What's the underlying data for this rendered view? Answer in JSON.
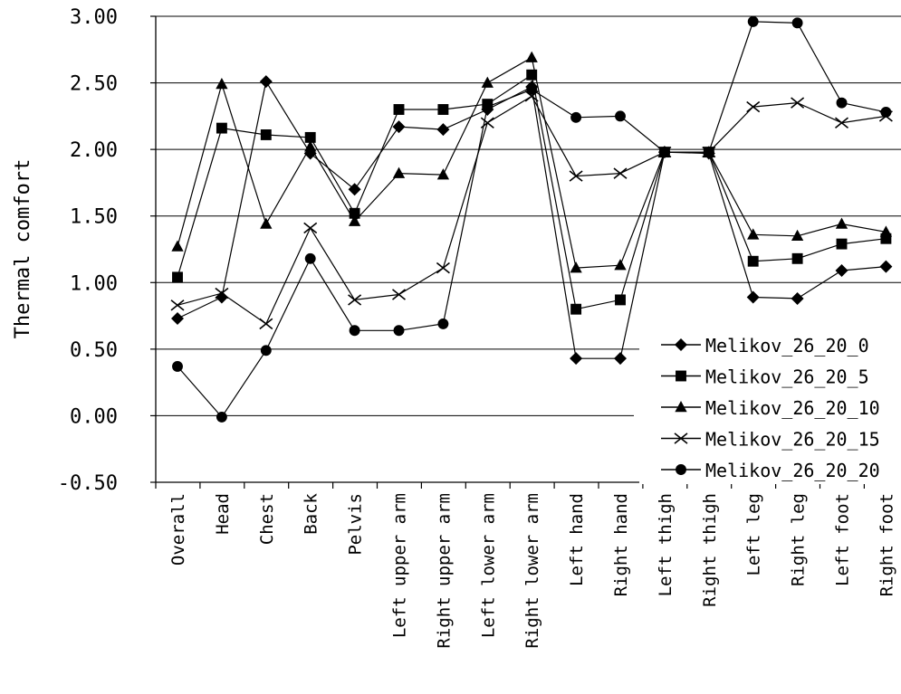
{
  "chart_data": {
    "type": "line",
    "ylabel": "Thermal comfort",
    "ylim": [
      -0.5,
      3.0
    ],
    "yticks": [
      "3.00",
      "2.50",
      "2.00",
      "1.50",
      "1.00",
      "0.50",
      "0.00",
      "-0.50"
    ],
    "grid": true,
    "legend_position": "bottom-right",
    "categories": [
      "Overall",
      "Head",
      "Chest",
      "Back",
      "Pelvis",
      "Left upper arm",
      "Right upper arm",
      "Left lower arm",
      "Right lower arm",
      "Left hand",
      "Right hand",
      "Left thigh",
      "Right thigh",
      "Left leg",
      "Right leg",
      "Left foot",
      "Right foot"
    ],
    "series": [
      {
        "name": "Melikov_26_20_0",
        "marker": "diamond",
        "values": [
          0.73,
          0.89,
          2.51,
          1.97,
          1.7,
          2.17,
          2.15,
          2.3,
          2.47,
          0.43,
          0.43,
          1.98,
          1.97,
          0.89,
          0.88,
          1.09,
          1.12
        ]
      },
      {
        "name": "Melikov_26_20_5",
        "marker": "square",
        "values": [
          1.04,
          2.16,
          2.11,
          2.09,
          1.52,
          2.3,
          2.3,
          2.34,
          2.56,
          0.8,
          0.87,
          1.98,
          1.98,
          1.16,
          1.18,
          1.29,
          1.33
        ]
      },
      {
        "name": "Melikov_26_20_10",
        "marker": "triangle",
        "values": [
          1.27,
          2.49,
          1.44,
          2.02,
          1.46,
          1.82,
          1.81,
          2.5,
          2.69,
          1.11,
          1.13,
          1.98,
          1.98,
          1.36,
          1.35,
          1.44,
          1.38
        ]
      },
      {
        "name": "Melikov_26_20_15",
        "marker": "x",
        "values": [
          0.83,
          0.92,
          0.69,
          1.41,
          0.87,
          0.91,
          1.11,
          2.2,
          2.4,
          1.8,
          1.82,
          1.98,
          1.98,
          2.32,
          2.35,
          2.2,
          2.25
        ]
      },
      {
        "name": "Melikov_26_20_20",
        "marker": "circle",
        "values": [
          0.37,
          -0.01,
          0.49,
          1.18,
          0.64,
          0.64,
          0.69,
          2.32,
          2.45,
          2.24,
          2.25,
          1.98,
          1.98,
          2.96,
          2.95,
          2.35,
          2.28
        ]
      }
    ]
  }
}
